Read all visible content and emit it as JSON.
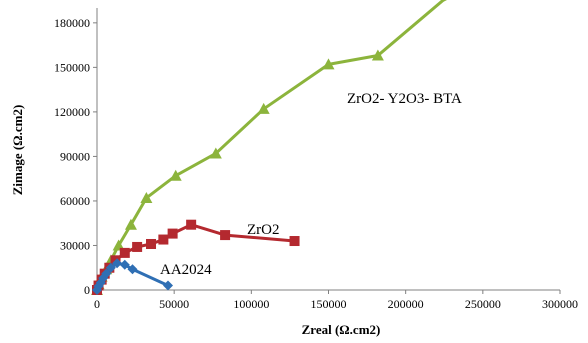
{
  "chart_data": {
    "type": "scatter",
    "title": "",
    "xlabel": "Zreal (Ω.cm2)",
    "ylabel": "Zimage (Ω.cm2)",
    "xlim": [
      0,
      300000
    ],
    "ylim": [
      0,
      190000
    ],
    "xticks": [
      0,
      50000,
      100000,
      150000,
      200000,
      250000,
      300000
    ],
    "yticks": [
      0,
      30000,
      60000,
      90000,
      120000,
      150000,
      180000
    ],
    "grid": false,
    "legend": "none",
    "series": [
      {
        "name": "ZrO2- Y2O3- BTA",
        "color": "#8cb43c",
        "marker": "triangle",
        "x": [
          0,
          1000,
          3000,
          6000,
          9000,
          14000,
          22000,
          32000,
          51000,
          77000,
          108000,
          150000,
          182000,
          224000,
          233000
        ],
        "y": [
          0,
          4000,
          9000,
          14000,
          20000,
          30000,
          44000,
          62000,
          77000,
          92000,
          122000,
          152000,
          158000,
          195000,
          200000
        ]
      },
      {
        "name": "ZrO2",
        "color": "#b4292f",
        "marker": "square",
        "x": [
          0,
          1000,
          3000,
          5000,
          8000,
          12000,
          18000,
          26000,
          35000,
          43000,
          49000,
          61000,
          83000,
          128000
        ],
        "y": [
          0,
          3000,
          7000,
          11000,
          15000,
          20000,
          25000,
          29000,
          31000,
          34000,
          38000,
          44000,
          37000,
          33000
        ]
      },
      {
        "name": "AA2024",
        "color": "#2f6fb4",
        "marker": "diamond",
        "x": [
          0,
          1000,
          2500,
          4000,
          6000,
          9000,
          13000,
          18000,
          23000,
          46000
        ],
        "y": [
          0,
          2500,
          5000,
          8000,
          11000,
          15000,
          18000,
          17000,
          14000,
          3000
        ]
      }
    ]
  }
}
